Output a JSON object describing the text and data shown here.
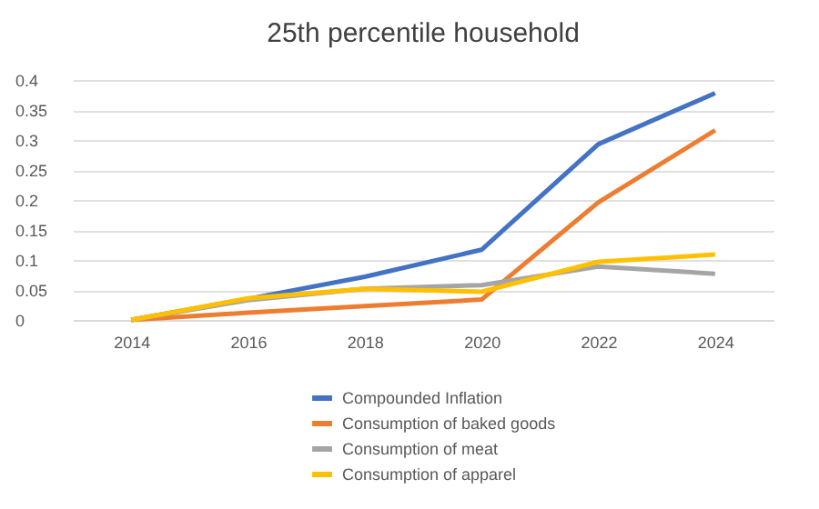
{
  "chart_data": {
    "type": "line",
    "title": "25th percentile household",
    "categories": [
      "2014",
      "2016",
      "2018",
      "2020",
      "2022",
      "2024"
    ],
    "series": [
      {
        "name": "Compounded Inflation",
        "color": "#4472c4",
        "values": [
          0,
          0.035,
          0.072,
          0.117,
          0.293,
          0.378
        ]
      },
      {
        "name": "Consumption of baked goods",
        "color": "#ed7d31",
        "values": [
          0,
          0.012,
          0.023,
          0.034,
          0.196,
          0.316
        ]
      },
      {
        "name": "Consumption of meat",
        "color": "#a5a5a5",
        "values": [
          0,
          0.033,
          0.052,
          0.058,
          0.089,
          0.077
        ]
      },
      {
        "name": "Consumption of apparel",
        "color": "#ffc000",
        "values": [
          0,
          0.036,
          0.052,
          0.047,
          0.097,
          0.109
        ]
      }
    ],
    "ylim": [
      0,
      0.4
    ],
    "yticks": [
      0,
      0.05,
      0.1,
      0.15,
      0.2,
      0.25,
      0.3,
      0.35,
      0.4
    ],
    "grid": "y",
    "legend": "bottom",
    "marker": "none",
    "line_style": "solid"
  }
}
